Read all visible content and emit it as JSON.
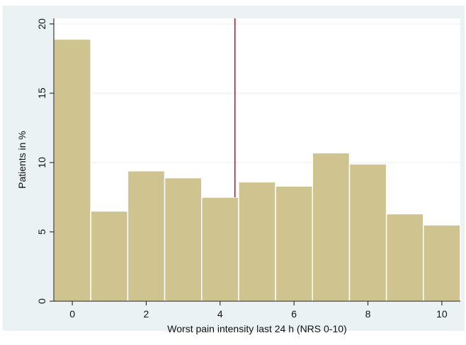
{
  "chart_data": {
    "type": "bar",
    "xlabel": "Worst pain intensity last 24 h (NRS 0-10)",
    "ylabel": "Patients in %",
    "categories": [
      0,
      1,
      2,
      3,
      4,
      5,
      6,
      7,
      8,
      9,
      10
    ],
    "values": [
      18.9,
      6.5,
      9.4,
      8.9,
      7.5,
      8.6,
      8.3,
      10.7,
      9.9,
      6.3,
      5.5
    ],
    "xticks": [
      0,
      2,
      4,
      6,
      8,
      10
    ],
    "xtick_labels": [
      "0",
      "2",
      "4",
      "6",
      "8",
      "10"
    ],
    "yticks": [
      0,
      5,
      10,
      15,
      20
    ],
    "ytick_labels": [
      "0",
      "5",
      "10",
      "15",
      "20"
    ],
    "xlim": [
      -0.5,
      10.5
    ],
    "ylim": [
      0,
      20.4
    ],
    "reference_line_x": 4.4,
    "grid": true,
    "colors": {
      "outer_background": "#eaf2f3",
      "plot_background": "#ffffff",
      "bar_fill": "#cfc38f",
      "bar_stroke": "#ffffff",
      "reference_line": "#c0142a",
      "gridline": "#e7eff0",
      "axis": "#111111"
    }
  }
}
